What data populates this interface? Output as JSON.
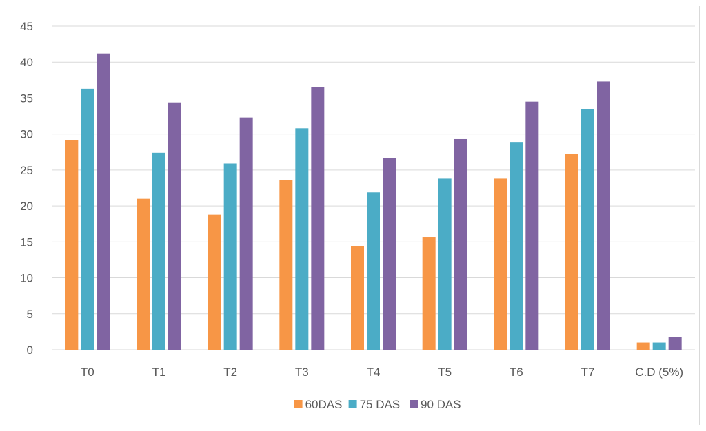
{
  "chart_data": {
    "type": "bar",
    "title": "",
    "xlabel": "",
    "ylabel": "",
    "categories": [
      "T0",
      "T1",
      "T2",
      "T3",
      "T4",
      "T5",
      "T6",
      "T7",
      "C.D (5%)"
    ],
    "ylim": [
      0,
      45
    ],
    "yticks": [
      0,
      5,
      10,
      15,
      20,
      25,
      30,
      35,
      40,
      45
    ],
    "grid": true,
    "legend_position": "bottom",
    "series": [
      {
        "name": "60DAS",
        "color": "#F79646",
        "values": [
          29.2,
          21.0,
          18.8,
          23.6,
          14.4,
          15.7,
          23.8,
          27.2,
          1.0
        ]
      },
      {
        "name": "75 DAS",
        "color": "#4BACC6",
        "values": [
          36.3,
          27.4,
          25.9,
          30.8,
          21.9,
          23.8,
          28.9,
          33.5,
          1.0
        ]
      },
      {
        "name": "90 DAS",
        "color": "#8064A2",
        "values": [
          41.2,
          34.4,
          32.3,
          36.5,
          26.7,
          29.3,
          34.5,
          37.3,
          1.8
        ]
      }
    ]
  }
}
